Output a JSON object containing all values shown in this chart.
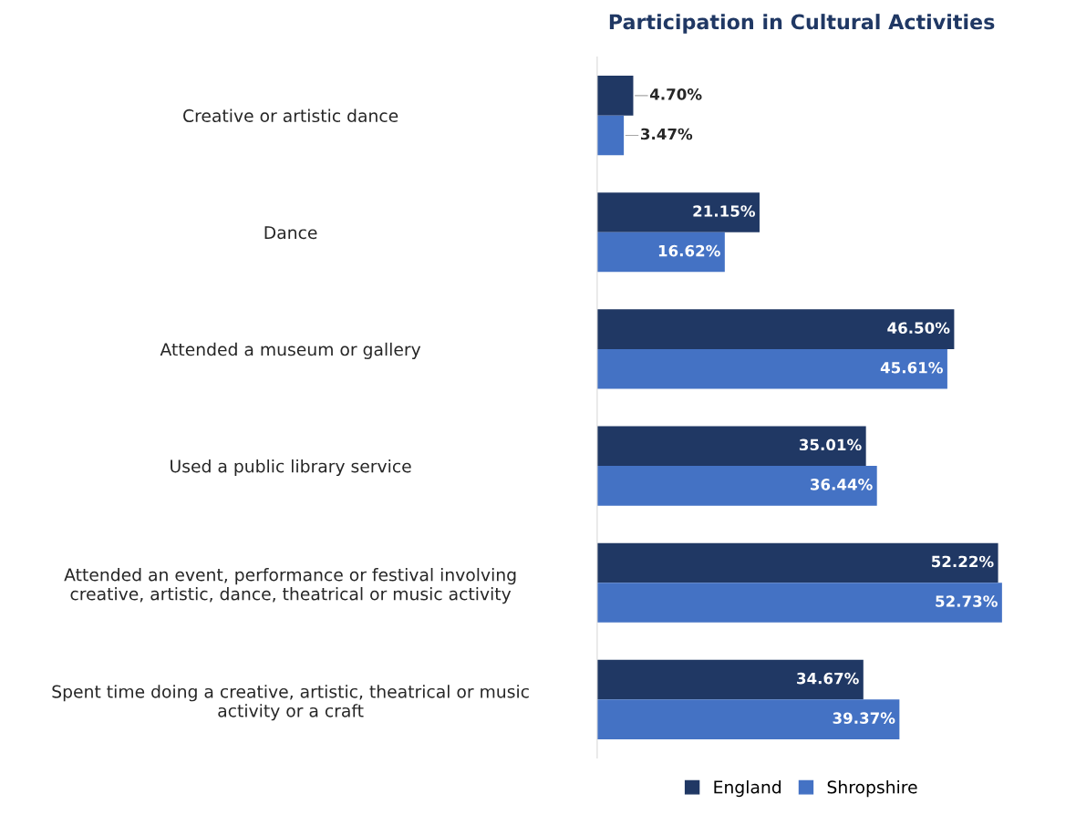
{
  "chart_data": {
    "type": "bar",
    "orientation": "horizontal",
    "title": "Participation in Cultural Activities",
    "categories": [
      "Creative or artistic dance",
      "Dance",
      "Attended a museum or gallery",
      "Used a public library service",
      "Attended an event, performance or festival involving creative, artistic, dance, theatrical or music activity",
      "Spent time doing a creative, artistic, theatrical or music activity or a craft"
    ],
    "series": [
      {
        "name": "England",
        "color": "#203864",
        "values": [
          4.7,
          21.15,
          46.5,
          35.01,
          52.22,
          34.67
        ],
        "value_labels": [
          "4.70%",
          "21.15%",
          "46.50%",
          "35.01%",
          "52.22%",
          "34.67%"
        ]
      },
      {
        "name": "Shropshire",
        "color": "#4472c4",
        "values": [
          3.47,
          16.62,
          45.61,
          36.44,
          52.73,
          39.37
        ],
        "value_labels": [
          "3.47%",
          "16.62%",
          "45.61%",
          "36.44%",
          "52.73%",
          "39.37%"
        ]
      }
    ],
    "legend": "bottom",
    "grid": false
  }
}
